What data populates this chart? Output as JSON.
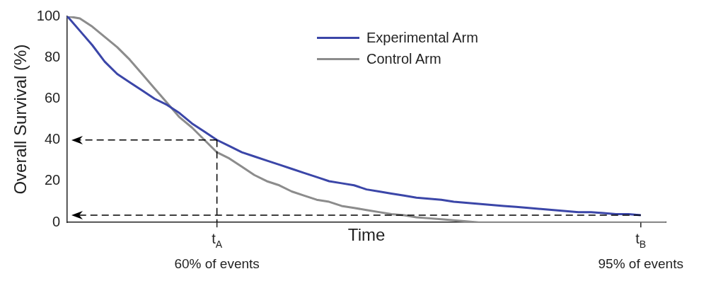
{
  "chart_data": {
    "type": "line",
    "xlabel": "Time",
    "ylabel": "Overall Survival (%)",
    "categories": [
      null,
      null,
      null,
      null,
      null,
      null,
      null,
      null,
      null,
      null,
      null,
      null,
      "t$_{A}$",
      null,
      null,
      null,
      null,
      null,
      null,
      null,
      null,
      null,
      null,
      null,
      null,
      null,
      null,
      null,
      null,
      null,
      null,
      null,
      null,
      null,
      null,
      null,
      null,
      null,
      null,
      null,
      null,
      null,
      null,
      null,
      null,
      null,
      "t$_{B}$",
      null,
      null
    ],
    "series": [
      {
        "name": "Experimental Arm",
        "color": "#3b46a8",
        "values": [
          100,
          93,
          86,
          78,
          72,
          68,
          64,
          60,
          57,
          53,
          48,
          44,
          40,
          37,
          34,
          32,
          30,
          28,
          26,
          24,
          22,
          20,
          19,
          18,
          16,
          15,
          14,
          13,
          12,
          11.5,
          11,
          10,
          9.5,
          9,
          8.5,
          8,
          7.5,
          7,
          6.5,
          6,
          5.5,
          5,
          5,
          4.5,
          4,
          4,
          3.5,
          null,
          null
        ]
      },
      {
        "name": "Control Arm",
        "color": "#8c8c8c",
        "values": [
          100,
          99,
          95,
          90,
          85,
          79,
          72,
          65,
          58,
          51,
          46,
          40,
          34,
          31,
          27,
          23,
          20,
          18,
          15,
          13,
          11,
          10,
          8,
          7,
          6,
          5,
          4,
          3.5,
          2.5,
          2,
          1.5,
          1,
          0.5,
          0,
          0,
          0,
          0,
          0,
          0,
          0,
          0,
          0,
          0,
          0,
          0,
          0,
          0,
          0,
          0
        ]
      }
    ],
    "ylim": [
      0,
      100
    ],
    "yticks": [
      0,
      20,
      40,
      60,
      80,
      100
    ],
    "grid": false,
    "legend": "top",
    "marker": "none",
    "line_style": "solid",
    "ref_lines": [
      {
        "axis": "y",
        "value": 40,
        "color": "#000000",
        "line_style": "dashed"
      },
      {
        "axis": "x",
        "value": "t$_{A}$",
        "color": "#000000",
        "line_style": "dashed"
      },
      {
        "axis": "y",
        "value": 3.5,
        "color": "#000000",
        "line_style": "dashed"
      }
    ],
    "annotations": [
      "60% of events",
      "95% of events"
    ]
  }
}
